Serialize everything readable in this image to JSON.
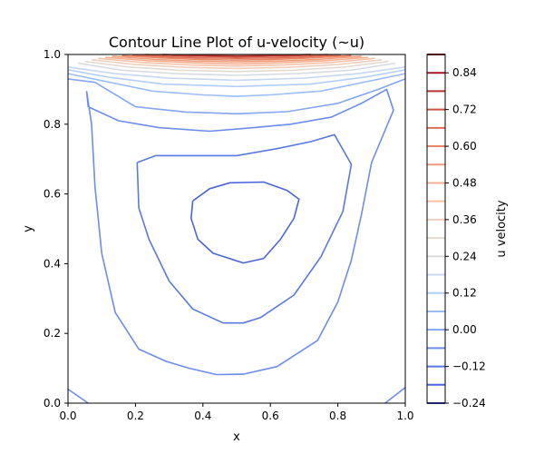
{
  "chart_data": {
    "type": "contour",
    "title": "Contour Line Plot of u-velocity (~u)",
    "xlabel": "x",
    "ylabel": "y",
    "xlim": [
      0.0,
      1.0
    ],
    "ylim": [
      0.0,
      1.0
    ],
    "x_ticks": [
      "0.0",
      "0.2",
      "0.4",
      "0.6",
      "0.8",
      "1.0"
    ],
    "y_ticks": [
      "0.0",
      "0.2",
      "0.4",
      "0.6",
      "0.8",
      "1.0"
    ],
    "grid": false,
    "colorbar": {
      "label": "u velocity",
      "range": [
        -0.24,
        0.9
      ],
      "colormap": "coolwarm",
      "tick_labels": [
        "−0.24",
        "−0.12",
        "0.00",
        "0.12",
        "0.24",
        "0.36",
        "0.48",
        "0.60",
        "0.72",
        "0.84"
      ],
      "tick_values": [
        -0.24,
        -0.12,
        0.0,
        0.12,
        0.24,
        0.36,
        0.48,
        0.6,
        0.72,
        0.84
      ],
      "levels": [
        -0.24,
        -0.18,
        -0.12,
        -0.06,
        0.0,
        0.06,
        0.12,
        0.18,
        0.24,
        0.3,
        0.36,
        0.42,
        0.48,
        0.54,
        0.6,
        0.66,
        0.72,
        0.78,
        0.84,
        0.9
      ]
    },
    "contours": [
      {
        "level": -0.12,
        "color": "#4b65d8",
        "points": [
          [
            0.37,
            0.58
          ],
          [
            0.42,
            0.615
          ],
          [
            0.48,
            0.632
          ],
          [
            0.58,
            0.634
          ],
          [
            0.65,
            0.61
          ],
          [
            0.685,
            0.585
          ],
          [
            0.67,
            0.53
          ],
          [
            0.63,
            0.47
          ],
          [
            0.58,
            0.415
          ],
          [
            0.52,
            0.402
          ],
          [
            0.43,
            0.43
          ],
          [
            0.385,
            0.47
          ],
          [
            0.365,
            0.53
          ],
          [
            0.37,
            0.58
          ]
        ]
      },
      {
        "level": -0.06,
        "color": "#5a78e2",
        "points": [
          [
            0.205,
            0.69
          ],
          [
            0.26,
            0.71
          ],
          [
            0.35,
            0.71
          ],
          [
            0.5,
            0.71
          ],
          [
            0.62,
            0.73
          ],
          [
            0.72,
            0.75
          ],
          [
            0.79,
            0.77
          ],
          [
            0.84,
            0.685
          ],
          [
            0.815,
            0.55
          ],
          [
            0.75,
            0.42
          ],
          [
            0.67,
            0.31
          ],
          [
            0.57,
            0.245
          ],
          [
            0.52,
            0.23
          ],
          [
            0.46,
            0.23
          ],
          [
            0.37,
            0.27
          ],
          [
            0.3,
            0.35
          ],
          [
            0.24,
            0.47
          ],
          [
            0.21,
            0.56
          ],
          [
            0.205,
            0.69
          ]
        ]
      },
      {
        "level": 0.0,
        "color": "#6d8ceb",
        "points": [
          [
            0.055,
            0.895
          ],
          [
            0.06,
            0.85
          ],
          [
            0.15,
            0.81
          ],
          [
            0.27,
            0.79
          ],
          [
            0.42,
            0.78
          ],
          [
            0.55,
            0.79
          ],
          [
            0.66,
            0.8
          ],
          [
            0.78,
            0.82
          ],
          [
            0.87,
            0.86
          ],
          [
            0.945,
            0.9
          ],
          [
            0.965,
            0.84
          ],
          [
            0.9,
            0.69
          ],
          [
            0.87,
            0.54
          ],
          [
            0.84,
            0.41
          ],
          [
            0.8,
            0.29
          ],
          [
            0.74,
            0.18
          ],
          [
            0.62,
            0.105
          ],
          [
            0.52,
            0.083
          ],
          [
            0.44,
            0.082
          ],
          [
            0.36,
            0.1
          ],
          [
            0.29,
            0.12
          ],
          [
            0.21,
            0.155
          ],
          [
            0.14,
            0.26
          ],
          [
            0.1,
            0.43
          ],
          [
            0.08,
            0.62
          ],
          [
            0.07,
            0.8
          ],
          [
            0.055,
            0.895
          ]
        ]
      },
      {
        "level": 0.0,
        "color": "#6d8ceb",
        "points": [
          [
            0.0,
            0.04
          ],
          [
            0.06,
            0.0
          ]
        ]
      },
      {
        "level": 0.0,
        "color": "#6d8ceb",
        "points": [
          [
            0.94,
            0.0
          ],
          [
            1.0,
            0.045
          ]
        ]
      },
      {
        "level": 0.06,
        "color": "#84a6f4",
        "points": [
          [
            0.0,
            0.93
          ],
          [
            0.08,
            0.92
          ],
          [
            0.2,
            0.85
          ],
          [
            0.35,
            0.835
          ],
          [
            0.5,
            0.83
          ],
          [
            0.65,
            0.836
          ],
          [
            0.8,
            0.86
          ],
          [
            0.92,
            0.9
          ],
          [
            1.0,
            0.93
          ]
        ]
      },
      {
        "level": 0.12,
        "color": "#9cbdf8",
        "points": [
          [
            0.0,
            0.945
          ],
          [
            0.1,
            0.925
          ],
          [
            0.25,
            0.895
          ],
          [
            0.4,
            0.884
          ],
          [
            0.5,
            0.88
          ],
          [
            0.6,
            0.884
          ],
          [
            0.75,
            0.895
          ],
          [
            0.9,
            0.925
          ],
          [
            1.0,
            0.945
          ]
        ]
      },
      {
        "level": 0.18,
        "color": "#b3cdfb",
        "points": [
          [
            0.0,
            0.956
          ],
          [
            0.12,
            0.935
          ],
          [
            0.28,
            0.915
          ],
          [
            0.5,
            0.908
          ],
          [
            0.72,
            0.915
          ],
          [
            0.88,
            0.935
          ],
          [
            1.0,
            0.956
          ]
        ]
      },
      {
        "level": 0.24,
        "color": "#c8d7f2",
        "points": [
          [
            0.0,
            0.964
          ],
          [
            0.14,
            0.945
          ],
          [
            0.3,
            0.932
          ],
          [
            0.5,
            0.926
          ],
          [
            0.7,
            0.932
          ],
          [
            0.86,
            0.945
          ],
          [
            1.0,
            0.964
          ]
        ]
      },
      {
        "level": 0.3,
        "color": "#d8dbe2",
        "points": [
          [
            0.03,
            0.975
          ],
          [
            0.16,
            0.955
          ],
          [
            0.32,
            0.945
          ],
          [
            0.5,
            0.94
          ],
          [
            0.68,
            0.945
          ],
          [
            0.84,
            0.955
          ],
          [
            0.97,
            0.975
          ]
        ]
      },
      {
        "level": 0.36,
        "color": "#e3dad3",
        "points": [
          [
            0.05,
            0.98
          ],
          [
            0.18,
            0.964
          ],
          [
            0.33,
            0.955
          ],
          [
            0.5,
            0.951
          ],
          [
            0.67,
            0.955
          ],
          [
            0.82,
            0.964
          ],
          [
            0.95,
            0.98
          ]
        ]
      },
      {
        "level": 0.42,
        "color": "#efcfbd",
        "points": [
          [
            0.07,
            0.985
          ],
          [
            0.2,
            0.971
          ],
          [
            0.35,
            0.963
          ],
          [
            0.5,
            0.96
          ],
          [
            0.65,
            0.963
          ],
          [
            0.8,
            0.971
          ],
          [
            0.93,
            0.985
          ]
        ]
      },
      {
        "level": 0.48,
        "color": "#f4c2a7",
        "points": [
          [
            0.09,
            0.989
          ],
          [
            0.22,
            0.977
          ],
          [
            0.36,
            0.97
          ],
          [
            0.5,
            0.967
          ],
          [
            0.64,
            0.97
          ],
          [
            0.78,
            0.977
          ],
          [
            0.91,
            0.989
          ]
        ]
      },
      {
        "level": 0.54,
        "color": "#f5b091",
        "points": [
          [
            0.11,
            0.992
          ],
          [
            0.24,
            0.982
          ],
          [
            0.37,
            0.976
          ],
          [
            0.5,
            0.973
          ],
          [
            0.63,
            0.976
          ],
          [
            0.76,
            0.982
          ],
          [
            0.89,
            0.992
          ]
        ]
      },
      {
        "level": 0.6,
        "color": "#f09c7b",
        "points": [
          [
            0.13,
            0.995
          ],
          [
            0.26,
            0.986
          ],
          [
            0.38,
            0.981
          ],
          [
            0.5,
            0.979
          ],
          [
            0.62,
            0.981
          ],
          [
            0.74,
            0.986
          ],
          [
            0.87,
            0.995
          ]
        ]
      },
      {
        "level": 0.66,
        "color": "#e88567",
        "points": [
          [
            0.16,
            0.997
          ],
          [
            0.28,
            0.99
          ],
          [
            0.39,
            0.986
          ],
          [
            0.5,
            0.984
          ],
          [
            0.61,
            0.986
          ],
          [
            0.72,
            0.99
          ],
          [
            0.84,
            0.997
          ]
        ]
      },
      {
        "level": 0.72,
        "color": "#dc6d53",
        "points": [
          [
            0.19,
            0.999
          ],
          [
            0.3,
            0.993
          ],
          [
            0.4,
            0.99
          ],
          [
            0.5,
            0.989
          ],
          [
            0.6,
            0.99
          ],
          [
            0.7,
            0.993
          ],
          [
            0.81,
            0.999
          ]
        ]
      },
      {
        "level": 0.78,
        "color": "#cd5241",
        "points": [
          [
            0.23,
            1.0
          ],
          [
            0.33,
            0.996
          ],
          [
            0.5,
            0.993
          ],
          [
            0.67,
            0.996
          ],
          [
            0.77,
            1.0
          ]
        ]
      },
      {
        "level": 0.84,
        "color": "#b93533",
        "points": [
          [
            0.28,
            1.0
          ],
          [
            0.4,
            0.997
          ],
          [
            0.5,
            0.996
          ],
          [
            0.6,
            0.997
          ],
          [
            0.72,
            1.0
          ]
        ]
      }
    ]
  },
  "colors": {
    "colorbar_lines": [
      "#3b4cc0",
      "#4b65d8",
      "#5a78e2",
      "#6d8ceb",
      "#84a6f4",
      "#9cbdf8",
      "#b3cdfb",
      "#c8d7f2",
      "#d8dbe2",
      "#e3dad3",
      "#efcfbd",
      "#f4c2a7",
      "#f5b091",
      "#f09c7b",
      "#e88567",
      "#dc6d53",
      "#cd5241",
      "#b93533",
      "#a21626",
      "#8b0a22"
    ]
  }
}
